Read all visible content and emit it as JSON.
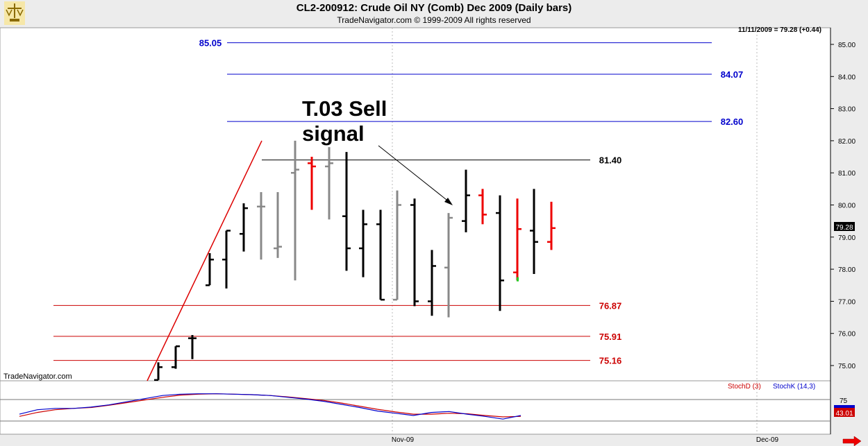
{
  "header": {
    "title": "CL2-200912:  Crude Oil NY (Comb) Dec 2009  (Daily bars)",
    "subtitle": "TradeNavigator.com © 1999-2009 All rights reserved"
  },
  "chart_data": {
    "type": "ohlc",
    "last_quote": "11/11/2009 = 79.28 (+0.44)",
    "watermark": "TradeNavigator.com",
    "current_price_label": "79.28",
    "y_ticks": [
      "75.00",
      "76.00",
      "77.00",
      "78.00",
      "79.00",
      "80.00",
      "81.00",
      "82.00",
      "83.00",
      "84.00",
      "85.00"
    ],
    "x_ticks": [
      "Nov-09",
      "Dec-09"
    ],
    "ylim": [
      74.55,
      85.25
    ],
    "bars": [
      {
        "open": 74.55,
        "high": 75.1,
        "low": 74.55,
        "close": 74.95,
        "color": "black"
      },
      {
        "open": 74.95,
        "high": 75.6,
        "low": 74.9,
        "close": 75.6,
        "color": "black"
      },
      {
        "open": 75.85,
        "high": 75.95,
        "low": 75.2,
        "close": 75.85,
        "color": "black"
      },
      {
        "open": 77.5,
        "high": 78.5,
        "low": 77.5,
        "close": 78.3,
        "color": "black"
      },
      {
        "open": 78.3,
        "high": 79.2,
        "low": 77.4,
        "close": 79.2,
        "color": "black"
      },
      {
        "open": 79.1,
        "high": 80.05,
        "low": 78.55,
        "close": 79.9,
        "color": "black"
      },
      {
        "open": 79.95,
        "high": 80.4,
        "low": 78.3,
        "close": 79.95,
        "color": "gray"
      },
      {
        "open": 78.65,
        "high": 80.4,
        "low": 78.35,
        "close": 78.7,
        "color": "gray"
      },
      {
        "open": 81.0,
        "high": 82.0,
        "low": 77.65,
        "close": 81.1,
        "color": "gray"
      },
      {
        "open": 81.3,
        "high": 81.5,
        "low": 79.85,
        "close": 81.2,
        "color": "red"
      },
      {
        "open": 81.2,
        "high": 81.8,
        "low": 79.55,
        "close": 81.3,
        "color": "gray"
      },
      {
        "open": 79.65,
        "high": 81.65,
        "low": 77.95,
        "close": 78.65,
        "color": "black"
      },
      {
        "open": 78.65,
        "high": 79.85,
        "low": 77.75,
        "close": 79.4,
        "color": "black"
      },
      {
        "open": 79.4,
        "high": 79.85,
        "low": 77.05,
        "close": 77.05,
        "color": "black"
      },
      {
        "open": 77.05,
        "high": 80.45,
        "low": 77.05,
        "close": 80.0,
        "color": "gray"
      },
      {
        "open": 80.0,
        "high": 80.2,
        "low": 76.85,
        "close": 77.0,
        "color": "black"
      },
      {
        "open": 77.0,
        "high": 78.6,
        "low": 76.55,
        "close": 78.1,
        "color": "black"
      },
      {
        "open": 78.05,
        "high": 79.75,
        "low": 76.5,
        "close": 79.6,
        "color": "gray"
      },
      {
        "open": 79.5,
        "high": 81.1,
        "low": 79.15,
        "close": 80.3,
        "color": "black"
      },
      {
        "open": 80.3,
        "high": 80.5,
        "low": 79.4,
        "close": 79.7,
        "color": "red"
      },
      {
        "open": 79.75,
        "high": 80.3,
        "low": 76.7,
        "close": 77.65,
        "color": "black"
      },
      {
        "open": 77.9,
        "high": 80.2,
        "low": 77.65,
        "close": 79.25,
        "color": "red"
      },
      {
        "open": 79.2,
        "high": 80.5,
        "low": 77.85,
        "close": 78.85,
        "color": "black"
      },
      {
        "open": 78.85,
        "high": 80.1,
        "low": 78.6,
        "close": 79.28,
        "color": "red"
      }
    ],
    "levels": [
      {
        "value": 85.05,
        "label": "85.05",
        "color": "#0000cc"
      },
      {
        "value": 84.07,
        "label": "84.07",
        "color": "#0000cc"
      },
      {
        "value": 82.6,
        "label": "82.60",
        "color": "#0000cc"
      },
      {
        "value": 81.4,
        "label": "81.40",
        "color": "#000000"
      },
      {
        "value": 76.87,
        "label": "76.87",
        "color": "#cc0000"
      },
      {
        "value": 75.91,
        "label": "75.91",
        "color": "#cc0000"
      },
      {
        "value": 75.16,
        "label": "75.16",
        "color": "#cc0000"
      }
    ],
    "annotation": {
      "line1": "T.03 Sell",
      "line2": "signal"
    },
    "indicator": {
      "legend": [
        {
          "name": "StochD (3)",
          "color": "#cc0000"
        },
        {
          "name": "StochK (14,3)",
          "color": "#0000cc"
        }
      ],
      "level_label": "75",
      "value_label": "43.01",
      "stochK": [
        42,
        52,
        55,
        55,
        58,
        63,
        70,
        77,
        84,
        87,
        88,
        88,
        87,
        86,
        84,
        80,
        76,
        71,
        64,
        57,
        49,
        44,
        39,
        46,
        48,
        42,
        37,
        31,
        39
      ],
      "stochD": [
        37,
        46,
        52,
        55,
        57,
        62,
        68,
        74,
        80,
        85,
        87,
        88,
        87,
        86,
        84,
        81,
        77,
        73,
        67,
        60,
        53,
        47,
        42,
        42,
        44,
        43,
        39,
        36,
        37
      ]
    }
  }
}
